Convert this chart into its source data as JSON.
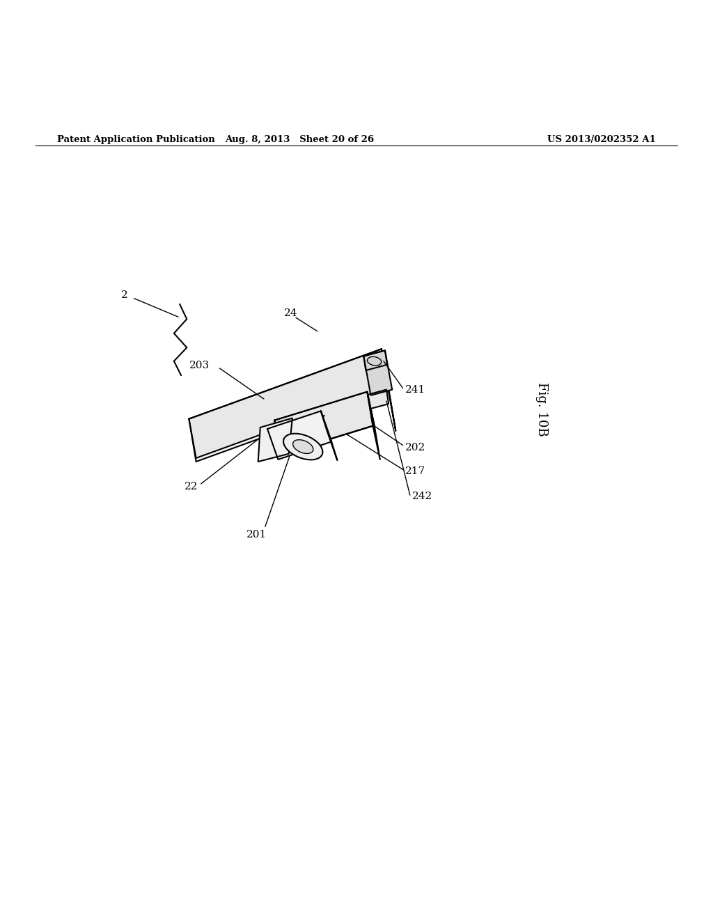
{
  "header_left": "Patent Application Publication",
  "header_mid": "Aug. 8, 2013   Sheet 20 of 26",
  "header_right": "US 2013/0202352 A1",
  "fig_label": "Fig. 10B",
  "bg_color": "#ffffff",
  "line_color": "#000000"
}
